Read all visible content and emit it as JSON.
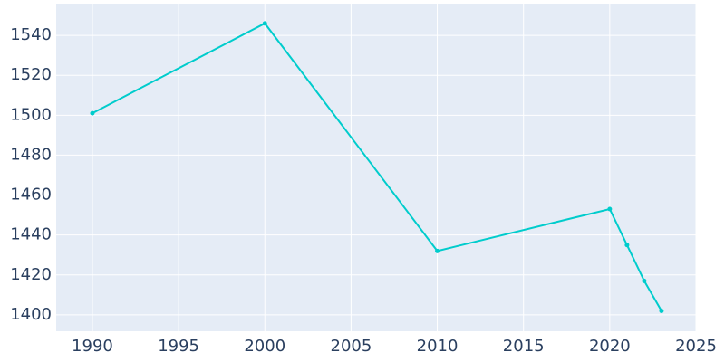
{
  "chart_data": {
    "type": "line",
    "x": [
      1990,
      2000,
      2010,
      2020,
      2021,
      2022,
      2023
    ],
    "series": [
      {
        "color": "#00cccc",
        "values": [
          1501,
          1546,
          1432,
          1453,
          1435,
          1417,
          1402
        ]
      }
    ],
    "xlim": [
      1987.9,
      2025
    ],
    "xticks": [
      1990,
      1995,
      2000,
      2005,
      2010,
      2015,
      2020,
      2025
    ],
    "ylim": [
      1391.8,
      1555.9
    ],
    "yticks": [
      1400,
      1420,
      1440,
      1460,
      1480,
      1500,
      1520,
      1540
    ],
    "grid": true
  }
}
